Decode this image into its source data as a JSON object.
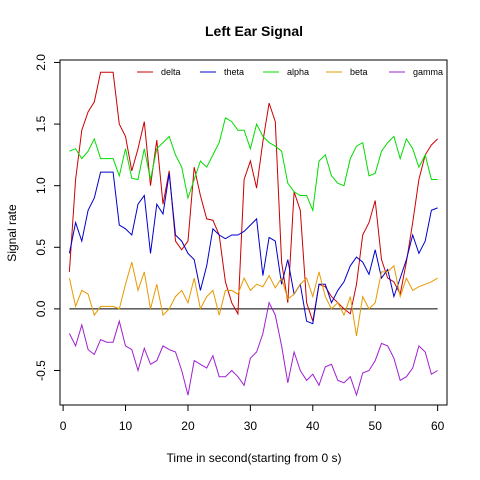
{
  "chart_data": {
    "type": "line",
    "title": "Left Ear Signal",
    "xlabel": "Time in second(starting from 0 s)",
    "ylabel": "Signal rate",
    "xlim": [
      -0.5,
      61.5
    ],
    "ylim": [
      -0.78,
      2.02
    ],
    "xticks": [
      0,
      10,
      20,
      30,
      40,
      50,
      60
    ],
    "yticks": [
      -0.5,
      0.0,
      0.5,
      1.0,
      1.5,
      2.0
    ],
    "ytick_labels": [
      "-0.5",
      "0.0",
      "0.5",
      "1.0",
      "1.5",
      "2.0"
    ],
    "legend_position": "top",
    "reference_line": {
      "y": 0,
      "color": "#000000"
    },
    "x": [
      1,
      2,
      3,
      4,
      5,
      6,
      7,
      8,
      9,
      10,
      11,
      12,
      13,
      14,
      15,
      16,
      17,
      18,
      19,
      20,
      21,
      22,
      23,
      24,
      25,
      26,
      27,
      28,
      29,
      30,
      31,
      32,
      33,
      34,
      35,
      36,
      37,
      38,
      39,
      40,
      41,
      42,
      43,
      44,
      45,
      46,
      47,
      48,
      49,
      50,
      51,
      52,
      53,
      54,
      55,
      56,
      57,
      58,
      59,
      60
    ],
    "series": [
      {
        "name": "delta",
        "color": "#cc0000",
        "values": [
          0.3,
          1.05,
          1.45,
          1.6,
          1.68,
          1.92,
          1.92,
          1.92,
          1.5,
          1.4,
          1.12,
          1.3,
          1.52,
          1.0,
          1.37,
          0.85,
          1.12,
          0.55,
          0.48,
          0.55,
          1.15,
          0.92,
          0.73,
          0.72,
          0.6,
          0.22,
          0.05,
          -0.04,
          1.05,
          1.2,
          0.98,
          1.36,
          1.67,
          1.52,
          0.38,
          0.05,
          0.95,
          0.8,
          0.05,
          -0.1,
          0.2,
          0.18,
          0.1,
          0.05,
          0.0,
          -0.04,
          0.2,
          0.6,
          0.7,
          0.88,
          0.4,
          0.25,
          0.22,
          0.12,
          0.38,
          0.7,
          1.05,
          1.25,
          1.33,
          1.38
        ]
      },
      {
        "name": "theta",
        "color": "#0000cc",
        "values": [
          0.45,
          0.7,
          0.55,
          0.8,
          0.9,
          1.11,
          1.11,
          1.11,
          0.68,
          0.65,
          0.6,
          0.85,
          0.92,
          0.45,
          0.85,
          0.77,
          1.1,
          0.6,
          0.55,
          0.45,
          0.4,
          0.15,
          0.35,
          0.65,
          0.6,
          0.57,
          0.6,
          0.6,
          0.63,
          0.68,
          0.73,
          0.27,
          0.58,
          0.55,
          0.2,
          0.4,
          0.12,
          0.2,
          -0.1,
          -0.12,
          0.2,
          0.2,
          0.05,
          0.15,
          0.22,
          0.35,
          0.42,
          0.38,
          0.28,
          0.48,
          0.25,
          0.32,
          0.1,
          0.25,
          0.4,
          0.6,
          0.45,
          0.55,
          0.8,
          0.82
        ]
      },
      {
        "name": "alpha",
        "color": "#00dd00",
        "values": [
          1.28,
          1.3,
          1.22,
          1.28,
          1.38,
          1.22,
          1.22,
          1.22,
          1.08,
          1.3,
          1.06,
          1.05,
          1.3,
          1.05,
          1.3,
          1.35,
          1.4,
          1.25,
          1.15,
          0.9,
          1.05,
          1.2,
          1.15,
          1.25,
          1.35,
          1.55,
          1.52,
          1.45,
          1.45,
          1.3,
          1.5,
          1.4,
          1.35,
          1.32,
          1.28,
          1.02,
          0.95,
          0.92,
          0.92,
          0.8,
          1.2,
          1.25,
          1.08,
          1.02,
          1.0,
          1.22,
          1.32,
          1.35,
          1.08,
          1.1,
          1.28,
          1.35,
          1.4,
          1.22,
          1.38,
          1.3,
          1.15,
          1.25,
          1.05,
          1.05
        ]
      },
      {
        "name": "beta",
        "color": "#e69a00",
        "values": [
          0.25,
          0.02,
          0.15,
          0.12,
          -0.05,
          0.02,
          0.02,
          0.02,
          0.0,
          0.2,
          0.38,
          0.15,
          0.3,
          0.0,
          0.2,
          -0.05,
          0.0,
          0.1,
          0.15,
          0.05,
          0.25,
          0.0,
          0.1,
          0.15,
          -0.05,
          0.15,
          0.15,
          0.12,
          0.25,
          0.15,
          0.2,
          0.18,
          0.27,
          0.17,
          0.25,
          0.08,
          0.12,
          0.2,
          0.25,
          0.1,
          0.3,
          0.1,
          0.0,
          0.05,
          -0.05,
          0.1,
          -0.22,
          0.1,
          0.0,
          0.05,
          0.3,
          0.3,
          0.35,
          0.1,
          0.25,
          0.15,
          0.18,
          0.2,
          0.22,
          0.25
        ]
      },
      {
        "name": "gamma",
        "color": "#a020d0",
        "values": [
          -0.2,
          -0.3,
          -0.13,
          -0.33,
          -0.37,
          -0.25,
          -0.27,
          -0.27,
          -0.1,
          -0.3,
          -0.33,
          -0.5,
          -0.32,
          -0.45,
          -0.42,
          -0.3,
          -0.33,
          -0.35,
          -0.5,
          -0.7,
          -0.42,
          -0.45,
          -0.48,
          -0.38,
          -0.55,
          -0.55,
          -0.5,
          -0.55,
          -0.62,
          -0.4,
          -0.35,
          -0.2,
          0.05,
          -0.05,
          -0.3,
          -0.6,
          -0.35,
          -0.5,
          -0.58,
          -0.53,
          -0.62,
          -0.47,
          -0.45,
          -0.58,
          -0.6,
          -0.55,
          -0.7,
          -0.52,
          -0.5,
          -0.42,
          -0.28,
          -0.3,
          -0.4,
          -0.58,
          -0.55,
          -0.48,
          -0.3,
          -0.35,
          -0.53,
          -0.5
        ]
      }
    ]
  }
}
